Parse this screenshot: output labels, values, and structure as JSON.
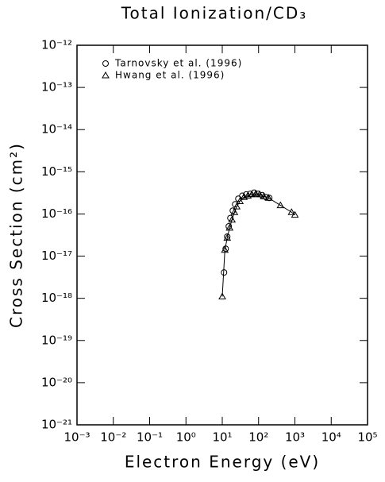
{
  "chart_data": {
    "type": "scatter",
    "title": "Total Ionization/CD₃",
    "xlabel": "Electron Energy (eV)",
    "ylabel": "Cross Section (cm²)",
    "xscale": "log",
    "yscale": "log",
    "xlim": [
      0.001,
      100000
    ],
    "ylim": [
      1e-21,
      1e-12
    ],
    "xticks": [
      {
        "value": 0.001,
        "label": "10⁻³"
      },
      {
        "value": 0.01,
        "label": "10⁻²"
      },
      {
        "value": 0.1,
        "label": "10⁻¹"
      },
      {
        "value": 1,
        "label": "10⁰"
      },
      {
        "value": 10,
        "label": "10¹"
      },
      {
        "value": 100,
        "label": "10²"
      },
      {
        "value": 1000,
        "label": "10³"
      },
      {
        "value": 10000,
        "label": "10⁴"
      },
      {
        "value": 100000,
        "label": "10⁵"
      }
    ],
    "yticks": [
      {
        "value": 1e-21,
        "label": "10⁻²¹"
      },
      {
        "value": 1e-20,
        "label": "10⁻²⁰"
      },
      {
        "value": 1e-19,
        "label": "10⁻¹⁹"
      },
      {
        "value": 1e-18,
        "label": "10⁻¹⁸"
      },
      {
        "value": 1e-17,
        "label": "10⁻¹⁷"
      },
      {
        "value": 1e-16,
        "label": "10⁻¹⁶"
      },
      {
        "value": 1e-15,
        "label": "10⁻¹⁵"
      },
      {
        "value": 1e-14,
        "label": "10⁻¹⁴"
      },
      {
        "value": 1e-13,
        "label": "10⁻¹³"
      },
      {
        "value": 1e-12,
        "label": "10⁻¹²"
      }
    ],
    "legend": "upper left",
    "series": [
      {
        "name": "Tarnovsky et al. (1996)",
        "marker": "circle",
        "color": "#000000",
        "x": [
          11.2,
          12.4,
          13.7,
          15.1,
          16.7,
          19.5,
          22.6,
          27.7,
          35.6,
          45.7,
          58.8,
          75.6,
          97,
          125,
          161,
          197
        ],
        "values": [
          4.1e-18,
          1.5e-17,
          2.9e-17,
          5.1e-17,
          8e-17,
          1.2e-16,
          1.7e-16,
          2.3e-16,
          2.7e-16,
          2.9e-16,
          3e-16,
          3.2e-16,
          3e-16,
          2.8e-16,
          2.5e-16,
          2.4e-16
        ]
      },
      {
        "name": "Hwang et al. (1996)",
        "marker": "triangle",
        "color": "#000000",
        "line": true,
        "x": [
          10,
          11.8,
          13.7,
          15.9,
          18.5,
          21.6,
          25,
          30.6,
          39.5,
          50.7,
          65,
          83.6,
          107,
          138,
          188,
          400,
          810,
          1000
        ],
        "values": [
          1.1e-18,
          1.4e-17,
          2.7e-17,
          4.7e-17,
          7.3e-17,
          1.1e-16,
          1.5e-16,
          2e-16,
          2.5e-16,
          2.7e-16,
          2.9e-16,
          3e-16,
          2.9e-16,
          2.6e-16,
          2.4e-16,
          1.6e-16,
          1.1e-16,
          9.5e-17
        ]
      }
    ]
  }
}
